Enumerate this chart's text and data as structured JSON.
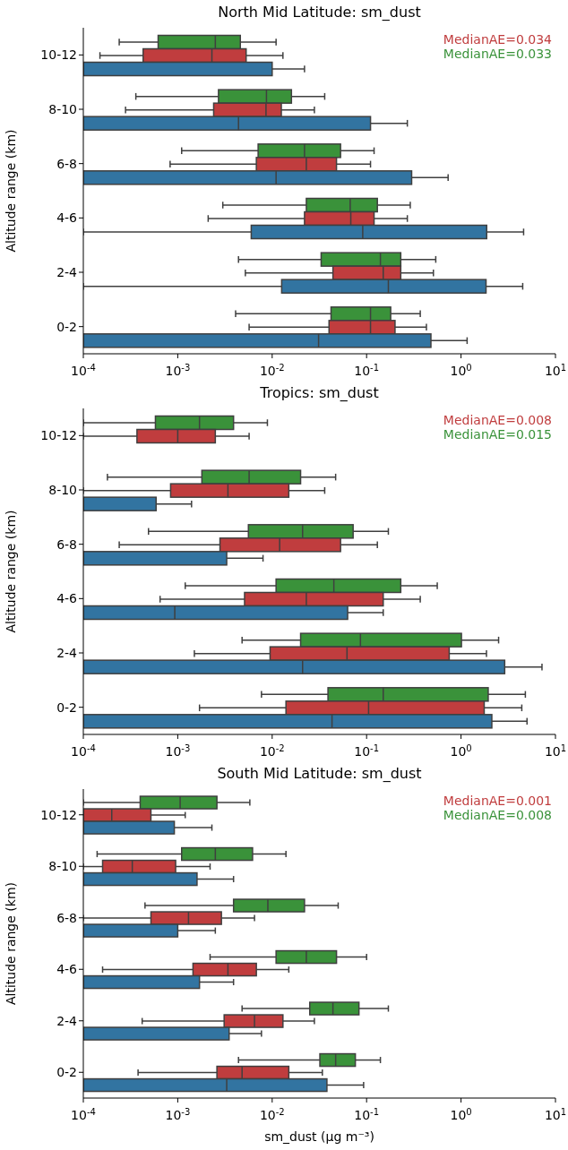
{
  "chart_data": [
    {
      "type": "box",
      "orientation": "horizontal",
      "title": "North Mid Latitude: sm_dust",
      "ylabel": "Altitude range (km)",
      "log": "x",
      "xlim": [
        0.0001,
        10
      ],
      "xticks": [
        {
          "value": 0.0001,
          "label": "10$^{-4}$"
        },
        {
          "value": 0.001,
          "label": "10$^{-3}$"
        },
        {
          "value": 0.01,
          "label": "10$^{-2}$"
        },
        {
          "value": 0.1,
          "label": "10$^{-1}$"
        },
        {
          "value": 1,
          "label": "10$^{0}$"
        },
        {
          "value": 10,
          "label": "10$^{1}$"
        }
      ],
      "categories": [
        "10-12",
        "8-10",
        "6-8",
        "4-6",
        "2-4",
        "0-2"
      ],
      "annotations": [
        "MedianAE=0.034",
        "MedianAE=0.033"
      ],
      "series": [
        {
          "color": "#3a923a",
          "boxes": [
            {
              "low": 0.00024,
              "q1": 0.00062,
              "median": 0.0025,
              "q3": 0.0046,
              "high": 0.011
            },
            {
              "low": 0.00036,
              "q1": 0.0027,
              "median": 0.0087,
              "q3": 0.016,
              "high": 0.036
            },
            {
              "low": 0.0011,
              "q1": 0.0071,
              "median": 0.022,
              "q3": 0.053,
              "high": 0.12
            },
            {
              "low": 0.003,
              "q1": 0.023,
              "median": 0.067,
              "q3": 0.13,
              "high": 0.29
            },
            {
              "low": 0.0044,
              "q1": 0.033,
              "median": 0.14,
              "q3": 0.23,
              "high": 0.54
            },
            {
              "low": 0.0041,
              "q1": 0.042,
              "median": 0.11,
              "q3": 0.18,
              "high": 0.37
            }
          ]
        },
        {
          "color": "#c03d3e",
          "boxes": [
            {
              "low": 0.00015,
              "q1": 0.00043,
              "median": 0.0023,
              "q3": 0.0053,
              "high": 0.013
            },
            {
              "low": 0.00028,
              "q1": 0.0024,
              "median": 0.0086,
              "q3": 0.0125,
              "high": 0.028
            },
            {
              "low": 0.00083,
              "q1": 0.0068,
              "median": 0.023,
              "q3": 0.048,
              "high": 0.11
            },
            {
              "low": 0.0021,
              "q1": 0.022,
              "median": 0.068,
              "q3": 0.12,
              "high": 0.27
            },
            {
              "low": 0.0052,
              "q1": 0.044,
              "median": 0.15,
              "q3": 0.23,
              "high": 0.51
            },
            {
              "low": 0.0057,
              "q1": 0.04,
              "median": 0.11,
              "q3": 0.2,
              "high": 0.43
            }
          ]
        },
        {
          "color": "#3274a1",
          "boxes": [
            {
              "low": 0.0001,
              "q1": 0.0001,
              "median": 0.0001,
              "q3": 0.01,
              "high": 0.022
            },
            {
              "low": 0.0001,
              "q1": 0.0001,
              "median": 0.0044,
              "q3": 0.11,
              "high": 0.27
            },
            {
              "low": 0.0001,
              "q1": 0.0001,
              "median": 0.011,
              "q3": 0.3,
              "high": 0.73
            },
            {
              "low": 0.0001,
              "q1": 0.006,
              "median": 0.091,
              "q3": 1.87,
              "high": 4.6
            },
            {
              "low": 0.0001,
              "q1": 0.0126,
              "median": 0.17,
              "q3": 1.84,
              "high": 4.5
            },
            {
              "low": 0.0001,
              "q1": 0.0001,
              "median": 0.031,
              "q3": 0.48,
              "high": 1.16
            }
          ]
        }
      ]
    },
    {
      "type": "box",
      "orientation": "horizontal",
      "title": "Tropics: sm_dust",
      "ylabel": "Altitude range (km)",
      "log": "x",
      "xlim": [
        0.0001,
        10
      ],
      "xticks": [
        {
          "value": 0.0001,
          "label": "10$^{-4}$"
        },
        {
          "value": 0.001,
          "label": "10$^{-3}$"
        },
        {
          "value": 0.01,
          "label": "10$^{-2}$"
        },
        {
          "value": 0.1,
          "label": "10$^{-1}$"
        },
        {
          "value": 1,
          "label": "10$^{0}$"
        },
        {
          "value": 10,
          "label": "10$^{1}$"
        }
      ],
      "categories": [
        "10-12",
        "8-10",
        "6-8",
        "4-6",
        "2-4",
        "0-2"
      ],
      "annotations": [
        "MedianAE=0.008",
        "MedianAE=0.015"
      ],
      "series": [
        {
          "color": "#3a923a",
          "boxes": [
            {
              "low": 0.0001,
              "q1": 0.00058,
              "median": 0.0017,
              "q3": 0.0039,
              "high": 0.0089
            },
            {
              "low": 0.00018,
              "q1": 0.0018,
              "median": 0.0057,
              "q3": 0.02,
              "high": 0.047
            },
            {
              "low": 0.00049,
              "q1": 0.0056,
              "median": 0.021,
              "q3": 0.072,
              "high": 0.17
            },
            {
              "low": 0.0012,
              "q1": 0.011,
              "median": 0.045,
              "q3": 0.23,
              "high": 0.56
            },
            {
              "low": 0.0048,
              "q1": 0.02,
              "median": 0.086,
              "q3": 1.01,
              "high": 2.5
            },
            {
              "low": 0.0077,
              "q1": 0.039,
              "median": 0.15,
              "q3": 1.94,
              "high": 4.8
            }
          ]
        },
        {
          "color": "#c03d3e",
          "boxes": [
            {
              "low": 0.0001,
              "q1": 0.00037,
              "median": 0.001,
              "q3": 0.0025,
              "high": 0.0057
            },
            {
              "low": 0.0001,
              "q1": 0.00084,
              "median": 0.0034,
              "q3": 0.015,
              "high": 0.036
            },
            {
              "low": 0.00024,
              "q1": 0.0028,
              "median": 0.012,
              "q3": 0.053,
              "high": 0.13
            },
            {
              "low": 0.00065,
              "q1": 0.0051,
              "median": 0.023,
              "q3": 0.15,
              "high": 0.37
            },
            {
              "low": 0.0015,
              "q1": 0.0095,
              "median": 0.062,
              "q3": 0.75,
              "high": 1.86
            },
            {
              "low": 0.0017,
              "q1": 0.014,
              "median": 0.105,
              "q3": 1.76,
              "high": 4.4
            }
          ]
        },
        {
          "color": "#3274a1",
          "boxes": [
            null,
            {
              "low": 0.0001,
              "q1": 0.0001,
              "median": 0.0001,
              "q3": 0.00059,
              "high": 0.0014
            },
            {
              "low": 0.0001,
              "q1": 0.0001,
              "median": 0.0001,
              "q3": 0.0033,
              "high": 0.008
            },
            {
              "low": 0.0001,
              "q1": 0.0001,
              "median": 0.00093,
              "q3": 0.063,
              "high": 0.15
            },
            {
              "low": 0.0001,
              "q1": 0.0001,
              "median": 0.021,
              "q3": 2.9,
              "high": 7.2
            },
            {
              "low": 0.0001,
              "q1": 0.0001,
              "median": 0.043,
              "q3": 2.12,
              "high": 5
            }
          ]
        }
      ]
    },
    {
      "type": "box",
      "orientation": "horizontal",
      "title": "South Mid Latitude: sm_dust",
      "ylabel": "Altitude range (km)",
      "xlabel": "sm_dust (µg m⁻³)",
      "log": "x",
      "xlim": [
        0.0001,
        10
      ],
      "xticks": [
        {
          "value": 0.0001,
          "label": "10$^{-4}$"
        },
        {
          "value": 0.001,
          "label": "10$^{-3}$"
        },
        {
          "value": 0.01,
          "label": "10$^{-2}$"
        },
        {
          "value": 0.1,
          "label": "10$^{-1}$"
        },
        {
          "value": 1,
          "label": "10$^{0}$"
        },
        {
          "value": 10,
          "label": "10$^{1}$"
        }
      ],
      "categories": [
        "10-12",
        "8-10",
        "6-8",
        "4-6",
        "2-4",
        "0-2"
      ],
      "annotations": [
        "MedianAE=0.001",
        "MedianAE=0.008"
      ],
      "series": [
        {
          "color": "#3a923a",
          "boxes": [
            {
              "low": 0.0001,
              "q1": 0.0004,
              "median": 0.00106,
              "q3": 0.0026,
              "high": 0.0058
            },
            {
              "low": 0.00014,
              "q1": 0.0011,
              "median": 0.0025,
              "q3": 0.0062,
              "high": 0.014
            },
            {
              "low": 0.00045,
              "q1": 0.0039,
              "median": 0.009,
              "q3": 0.022,
              "high": 0.05
            },
            {
              "low": 0.0022,
              "q1": 0.011,
              "median": 0.023,
              "q3": 0.048,
              "high": 0.1
            },
            {
              "low": 0.0048,
              "q1": 0.025,
              "median": 0.044,
              "q3": 0.083,
              "high": 0.17
            },
            {
              "low": 0.0044,
              "q1": 0.032,
              "median": 0.047,
              "q3": 0.076,
              "high": 0.14
            }
          ]
        },
        {
          "color": "#c03d3e",
          "boxes": [
            {
              "low": 0.0001,
              "q1": 0.0001,
              "median": 0.0002,
              "q3": 0.00052,
              "high": 0.0012
            },
            {
              "low": 0.0001,
              "q1": 0.00016,
              "median": 0.00033,
              "q3": 0.00095,
              "high": 0.0022
            },
            {
              "low": 0.0001,
              "q1": 0.00052,
              "median": 0.0013,
              "q3": 0.0029,
              "high": 0.0065
            },
            {
              "low": 0.00016,
              "q1": 0.00145,
              "median": 0.0034,
              "q3": 0.0068,
              "high": 0.015
            },
            {
              "low": 0.00042,
              "q1": 0.0031,
              "median": 0.0065,
              "q3": 0.013,
              "high": 0.028
            },
            {
              "low": 0.00038,
              "q1": 0.0026,
              "median": 0.0048,
              "q3": 0.015,
              "high": 0.034
            }
          ]
        },
        {
          "color": "#3274a1",
          "boxes": [
            {
              "low": 0.0001,
              "q1": 0.0001,
              "median": 0.0001,
              "q3": 0.00092,
              "high": 0.0023
            },
            {
              "low": 0.0001,
              "q1": 0.0001,
              "median": 0.0001,
              "q3": 0.0016,
              "high": 0.0039
            },
            {
              "low": 0.0001,
              "q1": 0.0001,
              "median": 0.0001,
              "q3": 0.001,
              "high": 0.0025
            },
            {
              "low": 0.0001,
              "q1": 0.0001,
              "median": 0.0001,
              "q3": 0.0017,
              "high": 0.0039
            },
            {
              "low": 0.0001,
              "q1": 0.0001,
              "median": 0.0001,
              "q3": 0.0035,
              "high": 0.0077
            },
            {
              "low": 0.0001,
              "q1": 0.0001,
              "median": 0.0033,
              "q3": 0.038,
              "high": 0.093
            }
          ]
        }
      ]
    }
  ]
}
